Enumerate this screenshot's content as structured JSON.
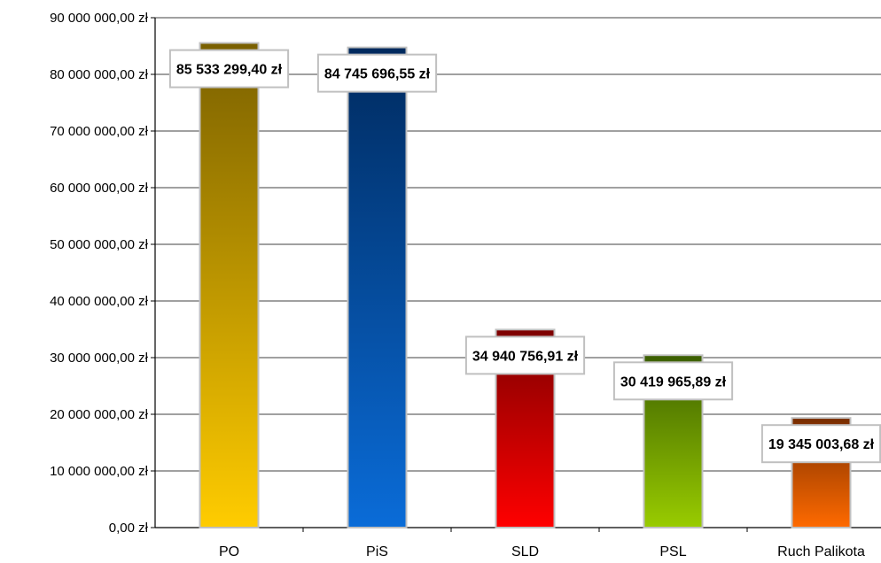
{
  "chart_data": {
    "type": "bar",
    "title": "",
    "xlabel": "",
    "ylabel": "",
    "ylim": [
      0,
      90000000
    ],
    "ytick_step": 10000000,
    "ytick_labels": [
      "0,00 zł",
      "10 000 000,00 zł",
      "20 000 000,00 zł",
      "30 000 000,00 zł",
      "40 000 000,00 zł",
      "50 000 000,00 zł",
      "60 000 000,00 zł",
      "70 000 000,00 zł",
      "80 000 000,00 zł",
      "90 000 000,00 zł"
    ],
    "grid": true,
    "legend": "none",
    "categories": [
      "PO",
      "PiS",
      "SLD",
      "PSL",
      "Ruch Palikota"
    ],
    "values": [
      85533299.4,
      84745696.55,
      34940756.91,
      30419965.89,
      19345003.68
    ],
    "data_labels": [
      "85 533 299,40 zł",
      "84 745 696,55 zł",
      "34 940 756,91 zł",
      "30 419 965,89 zł",
      "19 345 003,68 zł"
    ],
    "colors": [
      {
        "top": "#7a6000",
        "bottom": "#ffcc00"
      },
      {
        "top": "#002a5e",
        "bottom": "#0a6cd8"
      },
      {
        "top": "#7e0000",
        "bottom": "#ff0000"
      },
      {
        "top": "#3d6000",
        "bottom": "#99cc00"
      },
      {
        "top": "#7a2e00",
        "bottom": "#ff6a00"
      }
    ]
  }
}
